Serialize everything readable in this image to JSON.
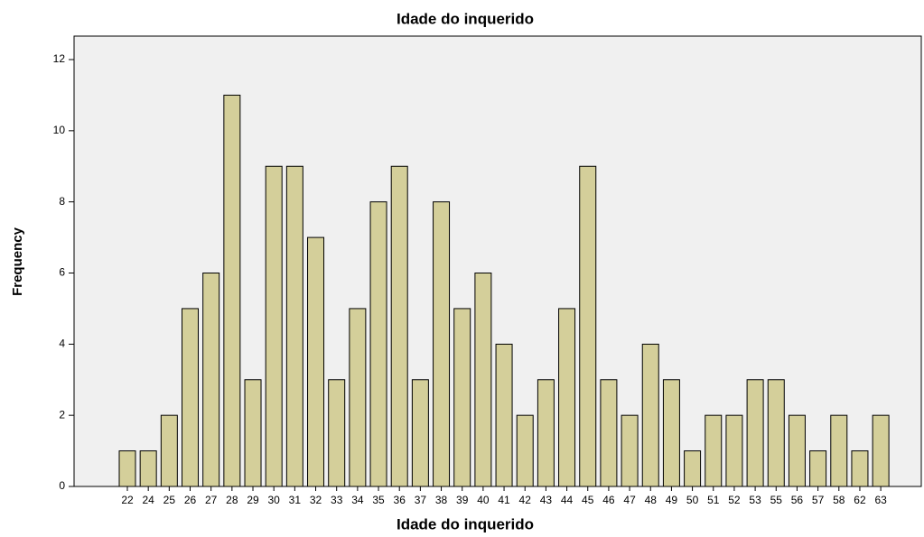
{
  "chart_data": {
    "type": "bar",
    "title": "Idade do inquerido",
    "x_label": "Idade do inquerido",
    "y_label": "Frequency",
    "categories": [
      "22",
      "24",
      "25",
      "26",
      "27",
      "28",
      "29",
      "30",
      "31",
      "32",
      "33",
      "34",
      "35",
      "36",
      "37",
      "38",
      "39",
      "40",
      "41",
      "42",
      "43",
      "44",
      "45",
      "46",
      "47",
      "48",
      "49",
      "50",
      "51",
      "52",
      "53",
      "55",
      "56",
      "57",
      "58",
      "62",
      "63"
    ],
    "values": [
      1,
      1,
      2,
      5,
      6,
      11,
      3,
      9,
      9,
      7,
      3,
      5,
      8,
      9,
      3,
      8,
      5,
      6,
      4,
      2,
      3,
      5,
      9,
      3,
      2,
      4,
      3,
      1,
      2,
      2,
      3,
      3,
      2,
      1,
      2,
      1,
      2
    ],
    "color": "#d4cf9a",
    "ylim": [
      0,
      12.66
    ],
    "yticks": [
      0,
      2,
      4,
      6,
      8,
      10,
      12
    ],
    "grid": false
  }
}
